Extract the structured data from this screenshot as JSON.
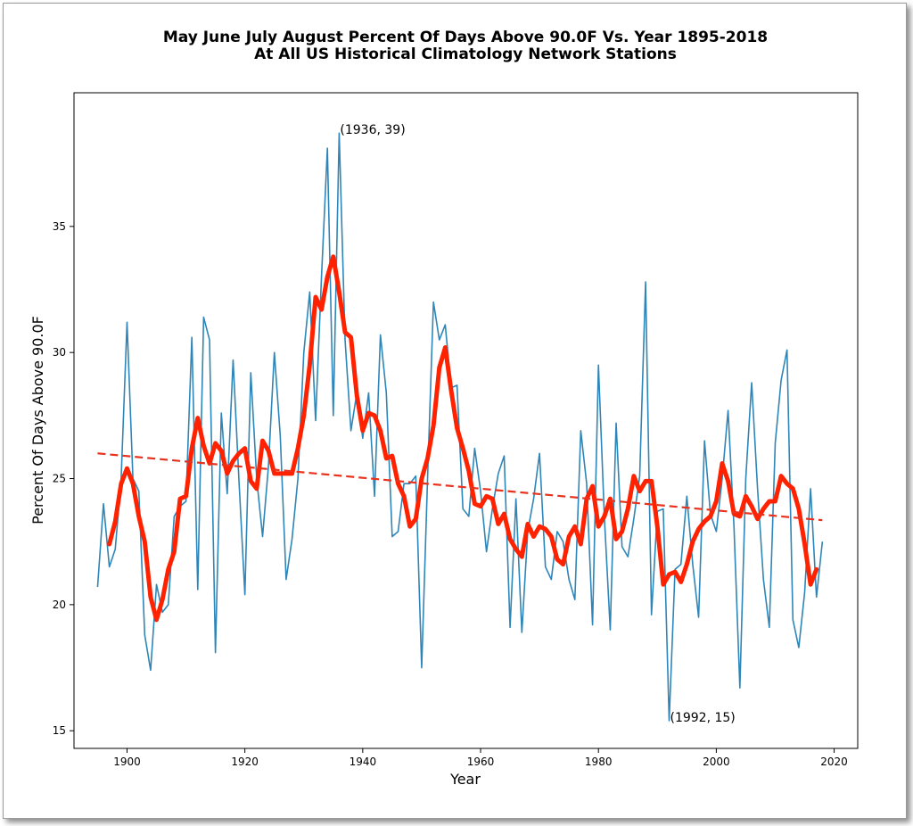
{
  "chart_data": {
    "type": "line",
    "title_line1": "May June July August Percent Of Days Above 90.0F Vs. Year 1895-2018",
    "title_line2": "At All US Historical Climatology Network Stations",
    "xlabel": "Year",
    "ylabel": "Percent Of Days Above 90.0F",
    "xlim": [
      1891,
      2024
    ],
    "ylim": [
      14.3,
      40.3
    ],
    "xticks": [
      1900,
      1920,
      1940,
      1960,
      1980,
      2000,
      2020
    ],
    "yticks": [
      15,
      20,
      25,
      30,
      35
    ],
    "grid": false,
    "colors": {
      "annual": "#2e86b8",
      "smooth": "#ff2200",
      "trend": "#e8321e"
    },
    "annual": {
      "x_start": 1895,
      "values": [
        20.7,
        24.0,
        21.5,
        22.2,
        25.0,
        31.2,
        25.0,
        24.5,
        18.8,
        17.4,
        20.8,
        19.7,
        20.0,
        23.5,
        23.9,
        24.1,
        30.6,
        20.6,
        31.4,
        30.5,
        18.1,
        27.6,
        24.4,
        29.7,
        24.9,
        20.4,
        29.2,
        25.0,
        22.7,
        25.5,
        30.0,
        26.7,
        21.0,
        22.6,
        25.0,
        30.0,
        32.4,
        27.3,
        33.0,
        38.1,
        27.5,
        38.7,
        30.5,
        26.9,
        28.4,
        26.6,
        28.4,
        24.3,
        30.7,
        28.4,
        22.7,
        22.9,
        24.8,
        24.8,
        25.1,
        17.5,
        25.0,
        32.0,
        30.5,
        31.1,
        28.6,
        28.7,
        23.8,
        23.5,
        26.2,
        24.5,
        22.1,
        23.8,
        25.2,
        25.9,
        19.1,
        24.2,
        18.9,
        22.9,
        24.2,
        26.0,
        21.5,
        21.0,
        22.9,
        22.5,
        21.0,
        20.2,
        26.9,
        24.8,
        19.2,
        29.5,
        23.5,
        19.0,
        27.2,
        22.3,
        21.9,
        23.4,
        25.1,
        32.8,
        19.6,
        23.7,
        23.8,
        15.4,
        21.4,
        21.6,
        24.3,
        21.6,
        19.5,
        26.5,
        23.6,
        22.9,
        25.0,
        27.7,
        23.1,
        16.7,
        25.0,
        28.8,
        24.6,
        21.0,
        19.1,
        26.4,
        28.9,
        30.1,
        19.4,
        18.3,
        20.5,
        24.6,
        20.3,
        22.5
      ]
    },
    "smoothed": {
      "x_start": 1897,
      "values": [
        22.4,
        23.3,
        24.8,
        25.4,
        24.8,
        23.5,
        22.5,
        20.3,
        19.4,
        20.2,
        21.4,
        22.1,
        24.2,
        24.3,
        26.2,
        27.4,
        26.3,
        25.6,
        26.4,
        26.1,
        25.2,
        25.7,
        26.0,
        26.2,
        24.9,
        24.6,
        26.5,
        26.1,
        25.2,
        25.2,
        25.2,
        25.2,
        26.2,
        27.5,
        29.5,
        32.2,
        31.7,
        33.0,
        33.8,
        32.4,
        30.8,
        30.6,
        28.3,
        26.9,
        27.6,
        27.5,
        26.9,
        25.8,
        25.9,
        24.8,
        24.3,
        23.1,
        23.4,
        25.0,
        25.8,
        27.1,
        29.4,
        30.2,
        28.5,
        27.0,
        26.2,
        25.3,
        24.0,
        23.9,
        24.3,
        24.2,
        23.2,
        23.6,
        22.6,
        22.2,
        21.9,
        23.2,
        22.7,
        23.1,
        23.0,
        22.7,
        21.8,
        21.6,
        22.7,
        23.1,
        22.4,
        24.2,
        24.7,
        23.1,
        23.5,
        24.2,
        22.6,
        22.9,
        23.8,
        25.1,
        24.5,
        24.9,
        24.9,
        23.1,
        20.8,
        21.2,
        21.3,
        20.9,
        21.6,
        22.5,
        23.0,
        23.3,
        23.5,
        24.1,
        25.6,
        24.9,
        23.6,
        23.5,
        24.3,
        23.9,
        23.4,
        23.8,
        24.1,
        24.1,
        25.1,
        24.8,
        24.6,
        23.8,
        22.4,
        20.8,
        21.4
      ]
    },
    "trend": {
      "x": [
        1895,
        2018
      ],
      "y": [
        26.0,
        23.35
      ]
    },
    "annotations": [
      {
        "text": "(1936, 39)",
        "x": 1936,
        "y": 38.7
      },
      {
        "text": "(1992, 15)",
        "x": 1992,
        "y": 15.4
      }
    ]
  }
}
